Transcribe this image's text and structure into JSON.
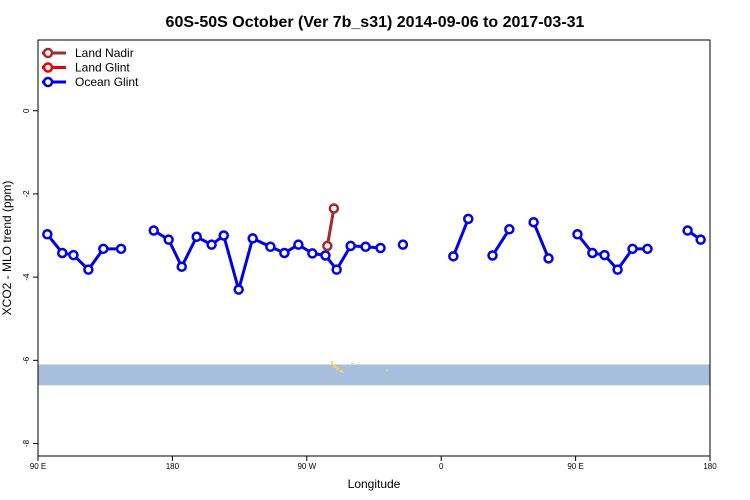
{
  "chart_data": {
    "type": "line",
    "title": "60S-50S October (Ver 7b_s31)   2014-09-06 to 2017-03-31",
    "xlabel": "Longitude",
    "ylabel": "XCO2 - MLO trend (ppm)",
    "xlim": [
      90,
      450
    ],
    "ylim": [
      -8.3,
      1.7
    ],
    "x_ticks": [
      {
        "value": 90,
        "label": "90 E"
      },
      {
        "value": 162,
        "label": "180"
      },
      {
        "value": 234,
        "label": "90 W"
      },
      {
        "value": 306,
        "label": "0"
      },
      {
        "value": 378,
        "label": "90 E"
      },
      {
        "value": 450,
        "label": "180"
      }
    ],
    "y_ticks": [
      {
        "value": 0,
        "label": "0"
      },
      {
        "value": -2,
        "label": "-2"
      },
      {
        "value": -4,
        "label": "-4"
      },
      {
        "value": -6,
        "label": "-6"
      },
      {
        "value": -8,
        "label": "-8"
      }
    ],
    "legend_position": "top-left",
    "series": [
      {
        "name": "Land Nadir",
        "color": "#a52a2a",
        "segments": [
          [
            [
              245.0,
              -3.25
            ],
            [
              248.5,
              -2.35
            ]
          ]
        ]
      },
      {
        "name": "Land Glint",
        "color": "#ee0000",
        "segments": []
      },
      {
        "name": "Ocean Glint",
        "color": "#0000ee",
        "segments": [
          [
            [
              95,
              -2.97
            ],
            [
              103,
              -3.42
            ],
            [
              109,
              -3.47
            ],
            [
              117,
              -3.82
            ],
            [
              125,
              -3.32
            ],
            [
              134.5,
              -3.32
            ]
          ],
          [
            [
              152,
              -2.88
            ],
            [
              160,
              -3.1
            ],
            [
              167,
              -3.75
            ],
            [
              175,
              -3.03
            ],
            [
              183,
              -3.22
            ],
            [
              189.5,
              -3.0
            ],
            [
              197.5,
              -4.3
            ],
            [
              205,
              -3.07
            ],
            [
              214.5,
              -3.27
            ],
            [
              222,
              -3.42
            ],
            [
              229.5,
              -3.22
            ],
            [
              237,
              -3.43
            ],
            [
              244,
              -3.48
            ],
            [
              250,
              -3.82
            ],
            [
              257.5,
              -3.25
            ],
            [
              265.5,
              -3.27
            ],
            [
              273.5,
              -3.3
            ]
          ],
          [
            [
              285.5,
              -3.22
            ]
          ],
          [
            [
              312.5,
              -3.5
            ],
            [
              320.5,
              -2.6
            ]
          ],
          [
            [
              333.5,
              -3.48
            ],
            [
              342.5,
              -2.85
            ]
          ],
          [
            [
              355.5,
              -2.68
            ],
            [
              363.5,
              -3.55
            ]
          ],
          [
            [
              379,
              -2.97
            ],
            [
              387,
              -3.42
            ],
            [
              393.5,
              -3.47
            ],
            [
              400.5,
              -3.82
            ],
            [
              408.5,
              -3.32
            ],
            [
              416.5,
              -3.32
            ]
          ],
          [
            [
              438,
              -2.88
            ],
            [
              445,
              -3.1
            ]
          ]
        ]
      }
    ],
    "map_background": {
      "ocean_band_lat_range": [
        -6.6,
        -6.1
      ],
      "ocean_color": "#a7bedd",
      "land_color": "#f5d060"
    }
  }
}
